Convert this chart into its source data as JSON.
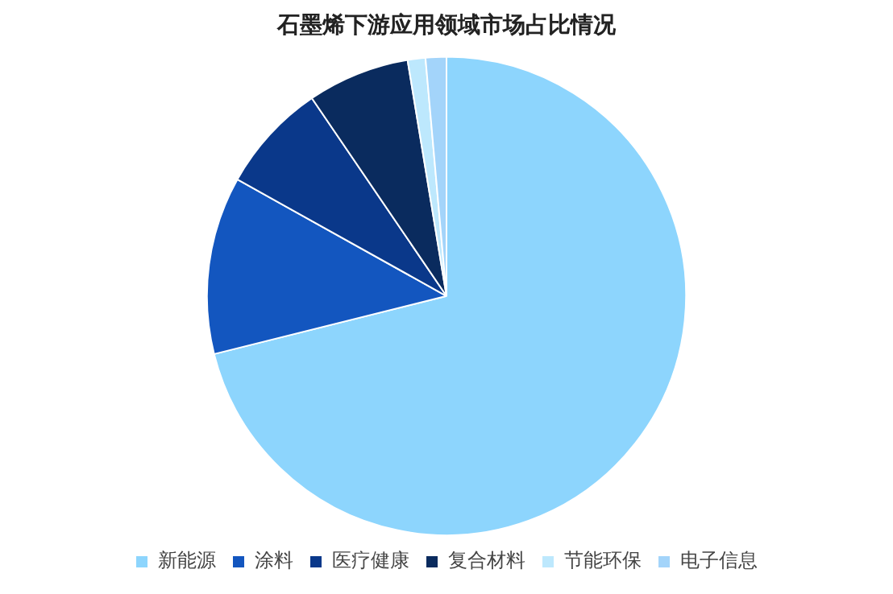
{
  "chart_data": {
    "type": "pie",
    "title": "石墨烯下游应用领域市场占比情况",
    "categories": [
      "新能源",
      "涂料",
      "医疗健康",
      "复合材料",
      "节能环保",
      "电子信息"
    ],
    "values": [
      71.1,
      12,
      7.4,
      6.9,
      1.2,
      1.4
    ],
    "colors": [
      "#8dd5fd",
      "#1356bf",
      "#0a388a",
      "#0a2b5e",
      "#bde8fd",
      "#a3d4fa"
    ],
    "legend": "bottom"
  }
}
